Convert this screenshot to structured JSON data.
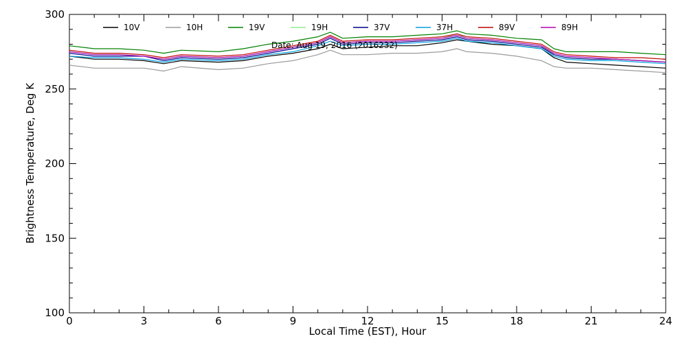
{
  "chart_data": {
    "type": "line",
    "title": "Date: Aug 19, 2016 (2016232)",
    "xlabel": "Local Time (EST), Hour",
    "ylabel": "Brightness Temperature, Deg K",
    "xlim": [
      0,
      24
    ],
    "ylim": [
      100,
      300
    ],
    "xticks": [
      "0",
      "3",
      "6",
      "9",
      "12",
      "15",
      "18",
      "21",
      "24"
    ],
    "yticks": [
      "100",
      "150",
      "200",
      "250",
      "300"
    ],
    "grid": false,
    "legend_position": "top",
    "x": [
      0,
      1,
      2,
      3,
      3.8,
      4.5,
      6,
      7,
      8,
      9,
      10,
      10.5,
      11,
      12,
      13,
      14,
      15,
      15.6,
      16,
      17,
      18,
      19,
      19.5,
      20,
      21,
      22,
      23,
      24
    ],
    "series": [
      {
        "name": "10V",
        "color": "#000000",
        "values": [
          272,
          270,
          270,
          269,
          267,
          269,
          268,
          269,
          272,
          274,
          277,
          280,
          277,
          278,
          279,
          279,
          281,
          283,
          282,
          280,
          279,
          277,
          271,
          268,
          267,
          266,
          265,
          264
        ]
      },
      {
        "name": "10H",
        "color": "#9a9a9a",
        "values": [
          266,
          264,
          264,
          264,
          262,
          265,
          263,
          264,
          267,
          269,
          273,
          276,
          273,
          273,
          274,
          274,
          275,
          277,
          275,
          274,
          272,
          269,
          265,
          264,
          264,
          263,
          262,
          261
        ]
      },
      {
        "name": "19V",
        "color": "#008000",
        "values": [
          279,
          277,
          277,
          276,
          274,
          276,
          275,
          277,
          280,
          282,
          285,
          288,
          284,
          285,
          285,
          286,
          287,
          289,
          287,
          286,
          284,
          283,
          277,
          275,
          275,
          275,
          274,
          273
        ]
      },
      {
        "name": "19H",
        "color": "#90ee90",
        "values": [
          275,
          273,
          273,
          272,
          270,
          272,
          271,
          272,
          275,
          278,
          281,
          285,
          281,
          282,
          282,
          283,
          284,
          287,
          284,
          283,
          281,
          279,
          273,
          271,
          270,
          270,
          269,
          268
        ]
      },
      {
        "name": "37V",
        "color": "#00008b",
        "values": [
          274,
          272,
          272,
          272,
          269,
          271,
          270,
          271,
          274,
          277,
          280,
          284,
          280,
          281,
          281,
          282,
          283,
          285,
          283,
          282,
          280,
          278,
          273,
          271,
          270,
          270,
          269,
          268
        ]
      },
      {
        "name": "37H",
        "color": "#00a0e0",
        "values": [
          272,
          271,
          271,
          270,
          268,
          270,
          269,
          270,
          273,
          275,
          279,
          282,
          279,
          280,
          280,
          281,
          282,
          284,
          282,
          281,
          279,
          277,
          272,
          270,
          269,
          269,
          268,
          267
        ]
      },
      {
        "name": "89V",
        "color": "#c00000",
        "values": [
          276,
          274,
          274,
          273,
          271,
          273,
          272,
          273,
          276,
          279,
          282,
          286,
          282,
          283,
          283,
          284,
          285,
          287,
          285,
          284,
          282,
          280,
          275,
          273,
          272,
          271,
          271,
          270
        ]
      },
      {
        "name": "89H",
        "color": "#b000b0",
        "values": [
          275,
          273,
          273,
          272,
          270,
          272,
          271,
          272,
          275,
          278,
          281,
          285,
          281,
          282,
          282,
          283,
          284,
          286,
          284,
          283,
          281,
          279,
          274,
          272,
          271,
          270,
          269,
          268
        ]
      }
    ]
  }
}
